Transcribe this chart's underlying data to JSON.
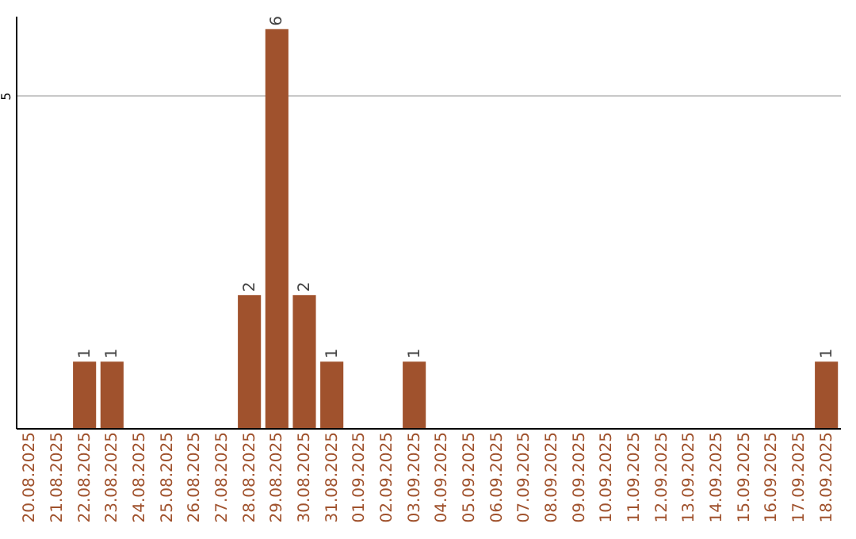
{
  "chart_data": {
    "type": "bar",
    "categories": [
      "20.08.2025",
      "21.08.2025",
      "22.08.2025",
      "23.08.2025",
      "24.08.2025",
      "25.08.2025",
      "26.08.2025",
      "27.08.2025",
      "28.08.2025",
      "29.08.2025",
      "30.08.2025",
      "31.08.2025",
      "01.09.2025",
      "02.09.2025",
      "03.09.2025",
      "04.09.2025",
      "05.09.2025",
      "06.09.2025",
      "07.09.2025",
      "08.09.2025",
      "09.09.2025",
      "10.09.2025",
      "11.09.2025",
      "12.09.2025",
      "13.09.2025",
      "14.09.2025",
      "15.09.2025",
      "16.09.2025",
      "17.09.2025",
      "18.09.2025"
    ],
    "values": [
      0,
      0,
      1,
      1,
      0,
      0,
      0,
      0,
      2,
      6,
      2,
      1,
      0,
      0,
      1,
      0,
      0,
      0,
      0,
      0,
      0,
      0,
      0,
      0,
      0,
      0,
      0,
      0,
      0,
      1
    ],
    "color": "#a0522d",
    "value_labels": [
      null,
      null,
      "1",
      "1",
      null,
      null,
      null,
      null,
      "2",
      "6",
      "2",
      "1",
      null,
      null,
      "1",
      null,
      null,
      null,
      null,
      null,
      null,
      null,
      null,
      null,
      null,
      null,
      null,
      null,
      null,
      "1"
    ],
    "ylim": [
      0,
      6.2
    ],
    "yticks": [
      5
    ],
    "grid": "y"
  }
}
